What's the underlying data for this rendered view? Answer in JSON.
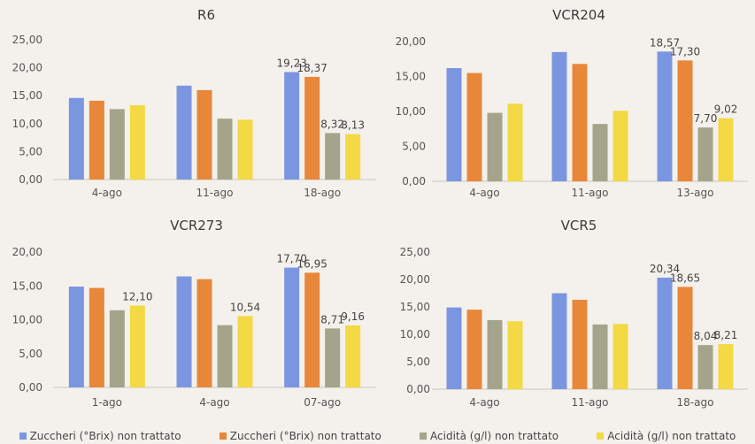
{
  "chart_data": [
    {
      "type": "bar",
      "title": "R6",
      "categories": [
        "4-ago",
        "11-ago",
        "18-ago"
      ],
      "ylim": [
        0,
        25
      ],
      "yticks": [
        "0,00",
        "5,00",
        "10,00",
        "15,00",
        "20,00",
        "25,00"
      ],
      "series": [
        {
          "name": "Zuccheri (°Brix) non trattato",
          "values": [
            14.6,
            16.8,
            19.23
          ],
          "labels": [
            "",
            "",
            "19,23"
          ]
        },
        {
          "name": "Zuccheri (°Brix) non trattato",
          "values": [
            14.1,
            16.0,
            18.37
          ],
          "labels": [
            "",
            "",
            "18,37"
          ]
        },
        {
          "name": "Acidità (g/l) non trattato",
          "values": [
            12.6,
            10.9,
            8.32
          ],
          "labels": [
            "",
            "",
            "8,32"
          ]
        },
        {
          "name": "Acidità (g/l) non trattato",
          "values": [
            13.3,
            10.7,
            8.13
          ],
          "labels": [
            "",
            "",
            "8,13"
          ]
        }
      ]
    },
    {
      "type": "bar",
      "title": "VCR204",
      "categories": [
        "4-ago",
        "11-ago",
        "13-ago"
      ],
      "ylim": [
        0,
        20
      ],
      "yticks": [
        "0,00",
        "5,00",
        "10,00",
        "15,00",
        "20,00"
      ],
      "series": [
        {
          "name": "Zuccheri (°Brix) non trattato",
          "values": [
            16.2,
            18.5,
            18.57
          ],
          "labels": [
            "",
            "",
            "18,57"
          ]
        },
        {
          "name": "Zuccheri (°Brix) non trattato",
          "values": [
            15.5,
            16.8,
            17.3
          ],
          "labels": [
            "",
            "",
            "17,30"
          ]
        },
        {
          "name": "Acidità (g/l) non trattato",
          "values": [
            9.8,
            8.2,
            7.7
          ],
          "labels": [
            "",
            "",
            "7,70"
          ]
        },
        {
          "name": "Acidità (g/l) non trattato",
          "values": [
            11.1,
            10.1,
            9.02
          ],
          "labels": [
            "",
            "",
            "9,02"
          ]
        }
      ]
    },
    {
      "type": "bar",
      "title": "VCR273",
      "categories": [
        "1-ago",
        "4-ago",
        "07-ago"
      ],
      "ylim": [
        0,
        20
      ],
      "yticks": [
        "0,00",
        "5,00",
        "10,00",
        "15,00",
        "20,00"
      ],
      "series": [
        {
          "name": "Zuccheri (°Brix) non trattato",
          "values": [
            14.9,
            16.4,
            17.7
          ],
          "labels": [
            "",
            "",
            "17,70"
          ]
        },
        {
          "name": "Zuccheri (°Brix) non trattato",
          "values": [
            14.7,
            16.0,
            16.95
          ],
          "labels": [
            "",
            "",
            "16,95"
          ]
        },
        {
          "name": "Acidità (g/l) non trattato",
          "values": [
            11.4,
            9.2,
            8.71
          ],
          "labels": [
            "",
            "",
            "8,71"
          ]
        },
        {
          "name": "Acidità (g/l) non trattato",
          "values": [
            12.1,
            10.54,
            9.16
          ],
          "labels": [
            "12,10",
            "10,54",
            "9,16"
          ]
        }
      ]
    },
    {
      "type": "bar",
      "title": "VCR5",
      "categories": [
        "4-ago",
        "11-ago",
        "18-ago"
      ],
      "ylim": [
        0,
        25
      ],
      "yticks": [
        "0,00",
        "5,00",
        "10,00",
        "15,00",
        "20,00",
        "25,00"
      ],
      "series": [
        {
          "name": "Zuccheri (°Brix) non trattato",
          "values": [
            14.9,
            17.5,
            20.34
          ],
          "labels": [
            "",
            "",
            "20,34"
          ]
        },
        {
          "name": "Zuccheri (°Brix) non trattato",
          "values": [
            14.5,
            16.3,
            18.65
          ],
          "labels": [
            "",
            "",
            "18,65"
          ]
        },
        {
          "name": "Acidità (g/l) non trattato",
          "values": [
            12.6,
            11.8,
            8.04
          ],
          "labels": [
            "",
            "",
            "8,04"
          ]
        },
        {
          "name": "Acidità (g/l) non trattato",
          "values": [
            12.4,
            11.9,
            8.21
          ],
          "labels": [
            "",
            "",
            "8,21"
          ]
        }
      ]
    }
  ],
  "colors": [
    "#7b96e0",
    "#e8873a",
    "#a3a48a",
    "#f3d943"
  ],
  "legend": [
    {
      "label": "Zuccheri (°Brix) non trattato",
      "color": "#7b96e0"
    },
    {
      "label": "Zuccheri (°Brix) non trattato",
      "color": "#e8873a"
    },
    {
      "label": "Acidità (g/l) non trattato",
      "color": "#a3a48a"
    },
    {
      "label": "Acidità (g/l) non trattato",
      "color": "#f3d943"
    }
  ]
}
